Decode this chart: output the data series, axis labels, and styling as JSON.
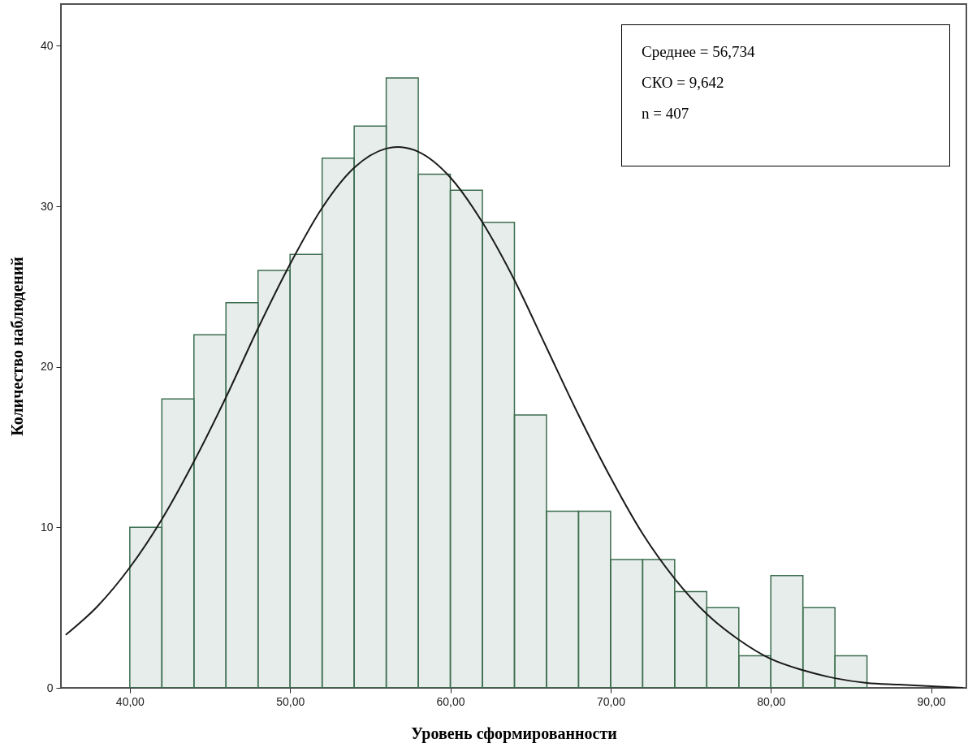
{
  "chart_data": {
    "type": "histogram",
    "xlabel": "Уровень сформированности",
    "ylabel": "Количество наблюдений",
    "bins": [
      40,
      42,
      44,
      46,
      48,
      50,
      52,
      54,
      56,
      58,
      60,
      62,
      64,
      66,
      68,
      70,
      72,
      74,
      76,
      78,
      80,
      82,
      84,
      86
    ],
    "values": [
      10,
      18,
      22,
      24,
      26,
      27,
      33,
      35,
      38,
      32,
      31,
      29,
      17,
      11,
      11,
      8,
      8,
      6,
      5,
      2,
      7,
      5,
      2
    ],
    "color": "#3c6e50",
    "series": [
      {
        "type": "line",
        "color": "#1a1a1a",
        "x": [
          36,
          38,
          40,
          42,
          44,
          46,
          48,
          50,
          52,
          54,
          56,
          56.7,
          58,
          60,
          62,
          64,
          66,
          68,
          70,
          72,
          74,
          76,
          78,
          80,
          82,
          84,
          86,
          88,
          90,
          92
        ],
        "values": [
          3.3,
          5.1,
          7.5,
          10.5,
          14.1,
          18.1,
          22.4,
          26.4,
          29.9,
          32.4,
          33.6,
          33.7,
          33.4,
          31.8,
          29.0,
          25.4,
          21.2,
          17.0,
          13.1,
          9.6,
          6.8,
          4.6,
          3.0,
          1.8,
          1.1,
          0.6,
          0.3,
          0.2,
          0.1,
          0.0
        ]
      }
    ],
    "xlim": [
      35.7,
      92.2
    ],
    "ylim": [
      0,
      42.6
    ],
    "xticks": [
      {
        "value": 40,
        "label": "40,00"
      },
      {
        "value": 50,
        "label": "50,00"
      },
      {
        "value": 60,
        "label": "60,00"
      },
      {
        "value": 70,
        "label": "70,00"
      },
      {
        "value": 80,
        "label": "80,00"
      },
      {
        "value": 90,
        "label": "90,00"
      }
    ],
    "yticks": [
      0,
      10,
      20,
      30,
      40
    ],
    "annotations": [
      "Среднее = 56,734",
      "СКО = 9,642",
      "n = 407"
    ]
  }
}
